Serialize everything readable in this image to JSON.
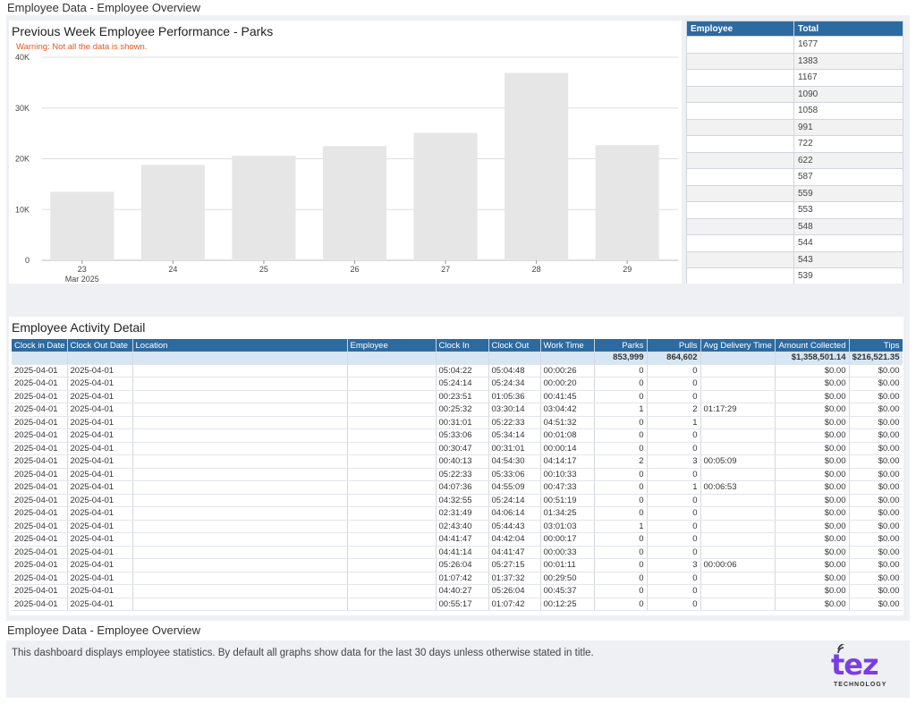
{
  "page": {
    "title": "Employee Data - Employee Overview"
  },
  "chart": {
    "title": "Previous Week Employee Performance - Parks",
    "warning": "Warning: Not all the data is shown."
  },
  "chart_data": {
    "type": "bar",
    "title": "Previous Week Employee Performance - Parks",
    "categories": [
      "23",
      "24",
      "25",
      "26",
      "27",
      "28",
      "29"
    ],
    "x_sublabel": "Mar 2025",
    "values": [
      13500,
      18800,
      20600,
      22500,
      25100,
      36900,
      22700
    ],
    "yticks": [
      "0",
      "10K",
      "20K",
      "30K",
      "40K"
    ],
    "ylim": [
      0,
      40000
    ],
    "grid": true,
    "bar_color": "#e6e6e6"
  },
  "employee_table": {
    "headers": [
      "Employee",
      "Total"
    ],
    "rows": [
      [
        "",
        "1677"
      ],
      [
        "",
        "1383"
      ],
      [
        "",
        "1167"
      ],
      [
        "",
        "1090"
      ],
      [
        "",
        "1058"
      ],
      [
        "",
        "991"
      ],
      [
        "",
        "722"
      ],
      [
        "",
        "622"
      ],
      [
        "",
        "587"
      ],
      [
        "",
        "559"
      ],
      [
        "",
        "553"
      ],
      [
        "",
        "548"
      ],
      [
        "",
        "544"
      ],
      [
        "",
        "543"
      ],
      [
        "",
        "539"
      ]
    ]
  },
  "detail": {
    "title": "Employee Activity Detail",
    "headers": [
      "Clock in Date",
      "Clock Out Date",
      "Location",
      "Employee",
      "Clock In",
      "Clock Out",
      "Work Time",
      "Parks",
      "Pulls",
      "Avg Delivery Time",
      "Amount Collected",
      "Tips"
    ],
    "totals": [
      "",
      "",
      "",
      "",
      "",
      "",
      "",
      "853,999",
      "864,602",
      "",
      "$1,358,501.14",
      "$216,521.35"
    ],
    "rows": [
      [
        "2025-04-01",
        "2025-04-01",
        "",
        "",
        "05:04:22",
        "05:04:48",
        "00:00:26",
        "0",
        "0",
        "",
        "$0.00",
        "$0.00"
      ],
      [
        "2025-04-01",
        "2025-04-01",
        "",
        "",
        "05:24:14",
        "05:24:34",
        "00:00:20",
        "0",
        "0",
        "",
        "$0.00",
        "$0.00"
      ],
      [
        "2025-04-01",
        "2025-04-01",
        "",
        "",
        "00:23:51",
        "01:05:36",
        "00:41:45",
        "0",
        "0",
        "",
        "$0.00",
        "$0.00"
      ],
      [
        "2025-04-01",
        "2025-04-01",
        "",
        "",
        "00:25:32",
        "03:30:14",
        "03:04:42",
        "1",
        "2",
        "01:17:29",
        "$0.00",
        "$0.00"
      ],
      [
        "2025-04-01",
        "2025-04-01",
        "",
        "",
        "00:31:01",
        "05:22:33",
        "04:51:32",
        "0",
        "1",
        "",
        "$0.00",
        "$0.00"
      ],
      [
        "2025-04-01",
        "2025-04-01",
        "",
        "",
        "05:33:06",
        "05:34:14",
        "00:01:08",
        "0",
        "0",
        "",
        "$0.00",
        "$0.00"
      ],
      [
        "2025-04-01",
        "2025-04-01",
        "",
        "",
        "00:30:47",
        "00:31:01",
        "00:00:14",
        "0",
        "0",
        "",
        "$0.00",
        "$0.00"
      ],
      [
        "2025-04-01",
        "2025-04-01",
        "",
        "",
        "00:40:13",
        "04:54:30",
        "04:14:17",
        "2",
        "3",
        "00:05:09",
        "$0.00",
        "$0.00"
      ],
      [
        "2025-04-01",
        "2025-04-01",
        "",
        "",
        "05:22:33",
        "05:33:06",
        "00:10:33",
        "0",
        "0",
        "",
        "$0.00",
        "$0.00"
      ],
      [
        "2025-04-01",
        "2025-04-01",
        "",
        "",
        "04:07:36",
        "04:55:09",
        "00:47:33",
        "0",
        "1",
        "00:06:53",
        "$0.00",
        "$0.00"
      ],
      [
        "2025-04-01",
        "2025-04-01",
        "",
        "",
        "04:32:55",
        "05:24:14",
        "00:51:19",
        "0",
        "0",
        "",
        "$0.00",
        "$0.00"
      ],
      [
        "2025-04-01",
        "2025-04-01",
        "",
        "",
        "02:31:49",
        "04:06:14",
        "01:34:25",
        "0",
        "0",
        "",
        "$0.00",
        "$0.00"
      ],
      [
        "2025-04-01",
        "2025-04-01",
        "",
        "",
        "02:43:40",
        "05:44:43",
        "03:01:03",
        "1",
        "0",
        "",
        "$0.00",
        "$0.00"
      ],
      [
        "2025-04-01",
        "2025-04-01",
        "",
        "",
        "04:41:47",
        "04:42:04",
        "00:00:17",
        "0",
        "0",
        "",
        "$0.00",
        "$0.00"
      ],
      [
        "2025-04-01",
        "2025-04-01",
        "",
        "",
        "04:41:14",
        "04:41:47",
        "00:00:33",
        "0",
        "0",
        "",
        "$0.00",
        "$0.00"
      ],
      [
        "2025-04-01",
        "2025-04-01",
        "",
        "",
        "05:26:04",
        "05:27:15",
        "00:01:11",
        "0",
        "3",
        "00:00:06",
        "$0.00",
        "$0.00"
      ],
      [
        "2025-04-01",
        "2025-04-01",
        "",
        "",
        "01:07:42",
        "01:37:32",
        "00:29:50",
        "0",
        "0",
        "",
        "$0.00",
        "$0.00"
      ],
      [
        "2025-04-01",
        "2025-04-01",
        "",
        "",
        "04:40:27",
        "05:26:04",
        "00:45:37",
        "0",
        "0",
        "",
        "$0.00",
        "$0.00"
      ],
      [
        "2025-04-01",
        "2025-04-01",
        "",
        "",
        "00:55:17",
        "01:07:42",
        "00:12:25",
        "0",
        "0",
        "",
        "$0.00",
        "$0.00"
      ]
    ],
    "numeric_columns": [
      7,
      8,
      10,
      11
    ]
  },
  "footer": {
    "title": "Employee Data - Employee Overview",
    "description": "This dashboard displays employee statistics. By default all graphs show data for the last 30 days unless otherwise stated in title."
  },
  "logo": {
    "word": "tez",
    "sub": "TECHNOLOGY",
    "color": "#7a3fe0"
  },
  "colors": {
    "header_blue": "#2d6aa0",
    "totals_row": "#d7e6f5",
    "warning": "#e8541b",
    "panel_bg": "#eef0f4"
  }
}
